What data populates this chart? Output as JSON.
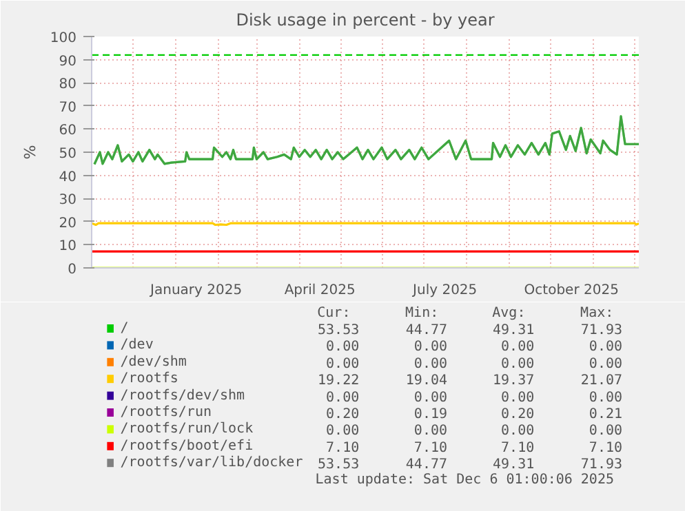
{
  "chart_data": {
    "type": "line",
    "title": "Disk usage in percent - by year",
    "ylabel": "%",
    "xlim": [
      "2024-11-01",
      "2025-12-04"
    ],
    "ylim": [
      0,
      100
    ],
    "yticks": [
      0,
      10,
      20,
      30,
      40,
      50,
      60,
      70,
      80,
      90,
      100
    ],
    "xticks": [
      {
        "value": "2024-11-01",
        "label": null
      },
      {
        "value": "2024-12-01",
        "label": null
      },
      {
        "value": "2025-01-01",
        "label": null
      },
      {
        "value": "2025-01-16",
        "label": "January 2025"
      },
      {
        "value": "2025-02-01",
        "label": null
      },
      {
        "value": "2025-03-01",
        "label": null
      },
      {
        "value": "2025-04-01",
        "label": null
      },
      {
        "value": "2025-04-16",
        "label": "April 2025"
      },
      {
        "value": "2025-05-01",
        "label": null
      },
      {
        "value": "2025-06-01",
        "label": null
      },
      {
        "value": "2025-07-01",
        "label": null
      },
      {
        "value": "2025-07-16",
        "label": "July 2025"
      },
      {
        "value": "2025-08-01",
        "label": null
      },
      {
        "value": "2025-09-01",
        "label": null
      },
      {
        "value": "2025-10-01",
        "label": null
      },
      {
        "value": "2025-10-16",
        "label": "October 2025"
      },
      {
        "value": "2025-11-01",
        "label": null
      },
      {
        "value": "2025-12-01",
        "label": null
      }
    ],
    "grid": true,
    "legend": "bottom",
    "line_style": "solid",
    "marker": "none",
    "ref_lines": [
      {
        "axis": "y",
        "value": 92,
        "color": "#00cc00",
        "line_style": "dashed"
      }
    ],
    "series": [
      {
        "name": "/",
        "color": "#00cc00",
        "x": [
          "2024-11-03",
          "2024-11-07",
          "2024-11-09",
          "2024-11-13",
          "2024-11-16",
          "2024-11-20",
          "2024-11-23",
          "2024-11-28",
          "2024-12-01",
          "2024-12-05",
          "2024-12-08",
          "2024-12-13",
          "2024-12-17",
          "2024-12-19",
          "2024-12-24",
          "2024-12-29",
          "2025-01-08",
          "2025-01-09",
          "2025-01-11",
          "2025-01-28",
          "2025-01-29",
          "2025-02-04",
          "2025-02-07",
          "2025-02-10",
          "2025-02-12",
          "2025-02-14",
          "2025-02-26",
          "2025-02-27",
          "2025-03-01",
          "2025-03-06",
          "2025-03-09",
          "2025-03-16",
          "2025-03-21",
          "2025-03-26",
          "2025-03-28",
          "2025-04-01",
          "2025-04-05",
          "2025-04-09",
          "2025-04-13",
          "2025-04-17",
          "2025-04-21",
          "2025-04-25",
          "2025-04-29",
          "2025-05-03",
          "2025-05-13",
          "2025-05-17",
          "2025-05-21",
          "2025-05-25",
          "2025-05-31",
          "2025-06-04",
          "2025-06-10",
          "2025-06-14",
          "2025-06-20",
          "2025-06-24",
          "2025-06-29",
          "2025-07-04",
          "2025-07-19",
          "2025-07-24",
          "2025-07-31",
          "2025-08-04",
          "2025-08-19",
          "2025-08-20",
          "2025-08-25",
          "2025-08-29",
          "2025-09-02",
          "2025-09-07",
          "2025-09-12",
          "2025-09-17",
          "2025-09-22",
          "2025-09-27",
          "2025-09-30",
          "2025-10-02",
          "2025-10-07",
          "2025-10-12",
          "2025-10-15",
          "2025-10-19",
          "2025-10-23",
          "2025-10-27",
          "2025-10-30",
          "2025-11-06",
          "2025-11-08",
          "2025-11-13",
          "2025-11-18",
          "2025-11-21",
          "2025-11-24",
          "2025-12-04"
        ],
        "values": [
          44.8,
          50,
          45,
          50,
          47,
          53,
          46,
          49,
          46,
          50,
          46,
          51,
          47,
          49,
          45,
          45.5,
          46,
          50,
          47,
          47,
          52,
          48,
          50,
          47,
          51,
          47,
          47,
          52,
          47,
          50,
          47,
          48,
          49,
          47,
          52,
          48,
          51,
          48,
          51,
          47,
          51,
          47,
          50,
          47,
          52,
          47,
          51,
          47,
          52,
          47,
          51,
          47,
          51,
          47,
          52,
          47,
          55,
          47,
          55,
          47,
          47,
          54,
          48,
          53,
          48,
          53,
          49,
          54,
          49,
          54,
          49,
          58,
          59,
          51,
          57,
          50.5,
          60.5,
          49.5,
          55.5,
          49.5,
          55,
          51,
          49,
          65.5,
          53.5,
          53.5
        ]
      },
      {
        "name": "/dev",
        "color": "#0066b3",
        "values": [
          null,
          null
        ]
      },
      {
        "name": "/dev/shm",
        "color": "#ff8000",
        "values": [
          null,
          null
        ]
      },
      {
        "name": "/rootfs",
        "color": "#ffcc00",
        "x": [
          "2024-11-01",
          "2024-11-04",
          "2024-11-06",
          "2025-01-28",
          "2025-01-30",
          "2025-02-03",
          "2025-02-07",
          "2025-02-10",
          "2025-12-01",
          "2025-12-02",
          "2025-12-04"
        ],
        "values": [
          19.3,
          18.6,
          19.3,
          19.3,
          18.6,
          18.8,
          18.6,
          19.3,
          19.3,
          18.7,
          19.2
        ]
      },
      {
        "name": "/rootfs/dev/shm",
        "color": "#330099",
        "values": [
          null,
          null
        ]
      },
      {
        "name": "/rootfs/run",
        "color": "#990099",
        "values": [
          null,
          null
        ]
      },
      {
        "name": "/rootfs/run/lock",
        "color": "#ccff00",
        "x": [
          "2024-11-01",
          "2025-12-04"
        ],
        "values": [
          0,
          0
        ]
      },
      {
        "name": "/rootfs/boot/efi",
        "color": "#ff0000",
        "x": [
          "2024-11-01",
          "2025-12-04"
        ],
        "values": [
          7.1,
          7.1
        ]
      },
      {
        "name": "/rootfs/var/lib/docker",
        "color": "#808080",
        "x": [
          "2024-11-03",
          "2024-11-07",
          "2024-11-09",
          "2024-11-13",
          "2024-11-16",
          "2024-11-20",
          "2024-11-23",
          "2024-11-28",
          "2024-12-01",
          "2024-12-05",
          "2024-12-08",
          "2024-12-13",
          "2024-12-17",
          "2024-12-19",
          "2024-12-24",
          "2024-12-29",
          "2025-01-08",
          "2025-01-09",
          "2025-01-11",
          "2025-01-28",
          "2025-01-29",
          "2025-02-04",
          "2025-02-07",
          "2025-02-10",
          "2025-02-12",
          "2025-02-14",
          "2025-02-26",
          "2025-02-27",
          "2025-03-01",
          "2025-03-06",
          "2025-03-09",
          "2025-03-16",
          "2025-03-21",
          "2025-03-26",
          "2025-03-28",
          "2025-04-01",
          "2025-04-05",
          "2025-04-09",
          "2025-04-13",
          "2025-04-17",
          "2025-04-21",
          "2025-04-25",
          "2025-04-29",
          "2025-05-03",
          "2025-05-13",
          "2025-05-17",
          "2025-05-21",
          "2025-05-25",
          "2025-05-31",
          "2025-06-04",
          "2025-06-10",
          "2025-06-14",
          "2025-06-20",
          "2025-06-24",
          "2025-06-29",
          "2025-07-04",
          "2025-07-19",
          "2025-07-24",
          "2025-07-31",
          "2025-08-04",
          "2025-08-19",
          "2025-08-20",
          "2025-08-25",
          "2025-08-29",
          "2025-09-02",
          "2025-09-07",
          "2025-09-12",
          "2025-09-17",
          "2025-09-22",
          "2025-09-27",
          "2025-09-30",
          "2025-10-02",
          "2025-10-07",
          "2025-10-12",
          "2025-10-15",
          "2025-10-19",
          "2025-10-23",
          "2025-10-27",
          "2025-10-30",
          "2025-11-06",
          "2025-11-08",
          "2025-11-13",
          "2025-11-18",
          "2025-11-21",
          "2025-11-24",
          "2025-12-04"
        ],
        "values": [
          44.8,
          50,
          45,
          50,
          47,
          53,
          46,
          49,
          46,
          50,
          46,
          51,
          47,
          49,
          45,
          45.5,
          46,
          50,
          47,
          47,
          52,
          48,
          50,
          47,
          51,
          47,
          47,
          52,
          47,
          50,
          47,
          48,
          49,
          47,
          52,
          48,
          51,
          48,
          51,
          47,
          51,
          47,
          50,
          47,
          52,
          47,
          51,
          47,
          52,
          47,
          51,
          47,
          51,
          47,
          52,
          47,
          55,
          47,
          55,
          47,
          47,
          54,
          48,
          53,
          48,
          53,
          49,
          54,
          49,
          54,
          49,
          58,
          59,
          51,
          57,
          50.5,
          60.5,
          49.5,
          55.5,
          49.5,
          55,
          51,
          49,
          65.5,
          53.5,
          53.5
        ]
      }
    ],
    "annotations": [
      "Cur:",
      "Min:",
      "Avg:",
      "Max:",
      "53.53",
      "44.77",
      "49.31",
      "71.93",
      "0.00",
      "0.00",
      "0.00",
      "0.00",
      "0.00",
      "0.00",
      "0.00",
      "0.00",
      "19.22",
      "19.04",
      "19.37",
      "21.07",
      "0.00",
      "0.00",
      "0.00",
      "0.00",
      "0.20",
      "0.19",
      "0.20",
      "0.21",
      "0.00",
      "0.00",
      "0.00",
      "0.00",
      "7.10",
      "7.10",
      "7.10",
      "7.10",
      "53.53",
      "44.77",
      "49.31",
      "71.93",
      "Last update: Sat Dec  6 01:00:06 2025"
    ]
  }
}
